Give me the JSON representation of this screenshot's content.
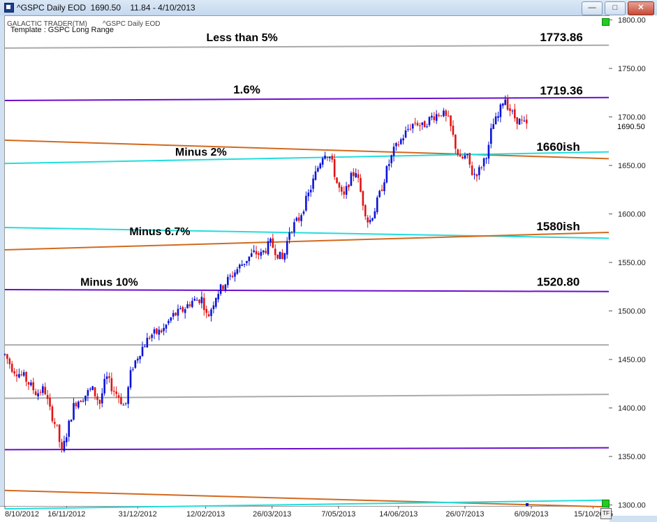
{
  "window": {
    "title": "^GSPC Daily EOD  1690.50    11.84 - 4/10/2013",
    "min_label": "—",
    "max_label": "□",
    "close_label": "✕"
  },
  "chart_header": {
    "vendor": "GALACTIC TRADER(TM)",
    "series_name": "^GSPC Daily EOD",
    "template": "Template : GSPC Long Range"
  },
  "chart_data": {
    "type": "candlestick",
    "last_price_label": "1690.50",
    "y_ticks": [
      1800,
      1750,
      1700,
      1650,
      1600,
      1550,
      1500,
      1450,
      1400,
      1350,
      1300
    ],
    "y_tick_labels": [
      "1800.00",
      "1750.00",
      "1700.00",
      "1650.00",
      "1600.00",
      "1550.00",
      "1500.00",
      "1450.00",
      "1400.00",
      "1350.00",
      "1300.00"
    ],
    "ylim": [
      1299,
      1804
    ],
    "x_tick_labels": [
      "8/10/2012",
      "16/11/2012",
      "31/12/2012",
      "12/02/2013",
      "26/03/2013",
      "7/05/2013",
      "14/06/2013",
      "26/07/2013",
      "6/09/2013",
      "15/10/2013",
      "25"
    ],
    "x_tick_days": [
      0,
      39,
      84,
      127,
      169,
      211,
      249,
      291,
      333,
      372,
      382
    ],
    "xlim": [
      0,
      382
    ],
    "keypoints": [
      [
        0,
        1455
      ],
      [
        5,
        1440
      ],
      [
        12,
        1432
      ],
      [
        20,
        1415
      ],
      [
        25,
        1420
      ],
      [
        28,
        1400
      ],
      [
        33,
        1378
      ],
      [
        36,
        1353
      ],
      [
        40,
        1380
      ],
      [
        44,
        1405
      ],
      [
        50,
        1412
      ],
      [
        55,
        1420
      ],
      [
        60,
        1405
      ],
      [
        64,
        1432
      ],
      [
        68,
        1420
      ],
      [
        72,
        1412
      ],
      [
        76,
        1400
      ],
      [
        80,
        1440
      ],
      [
        86,
        1460
      ],
      [
        92,
        1475
      ],
      [
        100,
        1480
      ],
      [
        106,
        1495
      ],
      [
        112,
        1500
      ],
      [
        118,
        1510
      ],
      [
        125,
        1513
      ],
      [
        128,
        1492
      ],
      [
        134,
        1518
      ],
      [
        140,
        1530
      ],
      [
        148,
        1545
      ],
      [
        154,
        1555
      ],
      [
        158,
        1560
      ],
      [
        162,
        1558
      ],
      [
        168,
        1570
      ],
      [
        172,
        1560
      ],
      [
        176,
        1552
      ],
      [
        180,
        1583
      ],
      [
        186,
        1595
      ],
      [
        192,
        1620
      ],
      [
        198,
        1648
      ],
      [
        202,
        1665
      ],
      [
        206,
        1658
      ],
      [
        210,
        1632
      ],
      [
        214,
        1615
      ],
      [
        218,
        1635
      ],
      [
        222,
        1645
      ],
      [
        226,
        1615
      ],
      [
        230,
        1590
      ],
      [
        234,
        1605
      ],
      [
        238,
        1625
      ],
      [
        242,
        1648
      ],
      [
        246,
        1665
      ],
      [
        250,
        1675
      ],
      [
        256,
        1690
      ],
      [
        260,
        1695
      ],
      [
        264,
        1690
      ],
      [
        270,
        1700
      ],
      [
        276,
        1705
      ],
      [
        281,
        1695
      ],
      [
        285,
        1670
      ],
      [
        288,
        1655
      ],
      [
        292,
        1660
      ],
      [
        296,
        1640
      ],
      [
        300,
        1645
      ],
      [
        304,
        1660
      ],
      [
        306,
        1668
      ],
      [
        308,
        1690
      ],
      [
        312,
        1700
      ],
      [
        316,
        1722
      ],
      [
        318,
        1712
      ],
      [
        322,
        1700
      ],
      [
        326,
        1695
      ],
      [
        331,
        1690
      ]
    ],
    "annotations": [
      {
        "text": "Less than 5%",
        "price": 1778,
        "day": 150
      },
      {
        "text": "1773.86",
        "price": 1778,
        "day": 352
      },
      {
        "text": "1.6%",
        "price": 1724,
        "day": 153
      },
      {
        "text": "1719.36",
        "price": 1723,
        "day": 352
      },
      {
        "text": "Minus 2%",
        "price": 1660,
        "day": 124
      },
      {
        "text": "1660ish",
        "price": 1665,
        "day": 350
      },
      {
        "text": "Minus 6.7%",
        "price": 1578,
        "day": 98
      },
      {
        "text": "1580ish",
        "price": 1583,
        "day": 350
      },
      {
        "text": "Minus 10%",
        "price": 1526,
        "day": 66
      },
      {
        "text": "1520.80",
        "price": 1526,
        "day": 350
      }
    ],
    "lines": [
      {
        "color": "#aaaaaa",
        "y1": 1771,
        "y2": 1774
      },
      {
        "color": "#6a0dcc",
        "y1": 1717,
        "y2": 1720
      },
      {
        "color": "#d2691e",
        "y1": 1676,
        "y2": 1657
      },
      {
        "color": "#22dddd",
        "y1": 1652,
        "y2": 1664
      },
      {
        "color": "#22dddd",
        "y1": 1586,
        "y2": 1575
      },
      {
        "color": "#d2691e",
        "y1": 1563,
        "y2": 1581
      },
      {
        "color": "#6a0dcc",
        "y1": 1522,
        "y2": 1520
      },
      {
        "color": "#aaaaaa",
        "y1": 1465,
        "y2": 1465
      },
      {
        "color": "#aaaaaa",
        "y1": 1410,
        "y2": 1414
      },
      {
        "color": "#6a0dcc",
        "y1": 1357,
        "y2": 1359
      },
      {
        "color": "#d2691e",
        "y1": 1315,
        "y2": 1298
      },
      {
        "color": "#22dddd",
        "y1": 1296,
        "y2": 1305
      }
    ],
    "colors": {
      "up": "#0b12d8",
      "down": "#e01414",
      "label": "#000000"
    }
  },
  "tf_label": "TF"
}
